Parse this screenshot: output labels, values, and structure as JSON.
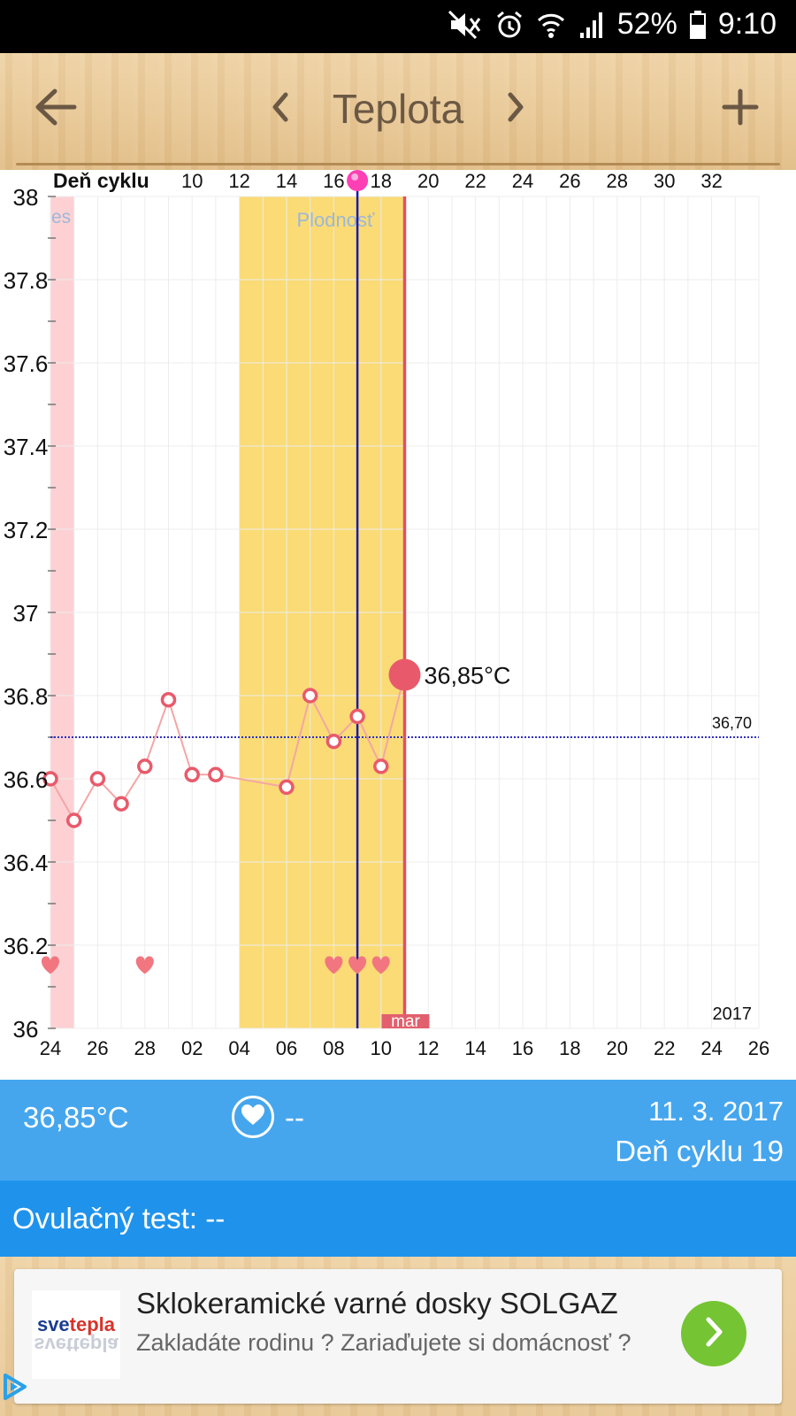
{
  "status_bar": {
    "battery": "52%",
    "time": "9:10"
  },
  "header": {
    "title": "Teplota"
  },
  "chart_data": {
    "type": "line",
    "top_axis_title": "Deň cyklu",
    "top_ticks": [
      "10",
      "12",
      "14",
      "16",
      "18",
      "20",
      "22",
      "24",
      "26",
      "28",
      "30",
      "32"
    ],
    "bottom_ticks": [
      "24",
      "26",
      "28",
      "02",
      "04",
      "06",
      "08",
      "10",
      "12",
      "14",
      "16",
      "18",
      "20",
      "22",
      "24",
      "26"
    ],
    "y_ticks": [
      "38",
      "37.8",
      "37.6",
      "37.4",
      "37.2",
      "37",
      "36.8",
      "36.6",
      "36.4",
      "36.2",
      "36"
    ],
    "ylim": [
      36,
      38
    ],
    "x_unit": "day_index_from_24_feb",
    "xlim": [
      0,
      30
    ],
    "series": [
      {
        "x": [
          0,
          1,
          2,
          3,
          4,
          5,
          6,
          7,
          10,
          11,
          12,
          13,
          14,
          15
        ],
        "y": [
          36.6,
          36.5,
          36.6,
          36.54,
          36.63,
          36.79,
          36.61,
          36.61,
          36.58,
          36.8,
          36.69,
          36.75,
          36.63,
          36.85
        ]
      }
    ],
    "coverline": {
      "value": 36.7,
      "label": "36,70"
    },
    "fertile_window": {
      "from": 8,
      "to": 15,
      "label": "Plodnosť"
    },
    "period_band": {
      "from": 0,
      "to": 1,
      "label": "es"
    },
    "ovulation_day": 13,
    "today": 15,
    "hearts": [
      0,
      4,
      12,
      13,
      14
    ],
    "current_label": "36,85°C",
    "month_label": "mar",
    "year_label": "2017",
    "colors": {
      "line": "#f4a6a6",
      "point": "#e85a6b",
      "fertile": "#fadb75",
      "period": "#fdd1d3",
      "today": "#e05060",
      "ovulation": "#1a1ab0",
      "coverline": "#3030c0"
    }
  },
  "info": {
    "temp": "36,85°C",
    "heart_value": "--",
    "date": "11. 3. 2017",
    "cycle_day": "Deň cyklu 19"
  },
  "ovulation_test": "Ovulačný test: --",
  "ad": {
    "logo_part1": "sve",
    "logo_part2": "tepla",
    "logo_reflection": "svettepla",
    "title": "Sklokeramické varné dosky SOLGAZ",
    "text": "Zakladáte rodinu ? Zariaďujete si domácnosť ?"
  }
}
